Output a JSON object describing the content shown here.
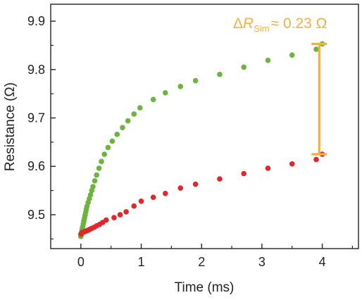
{
  "chart_data": {
    "type": "scatter",
    "xlabel": "Time (ms)",
    "ylabel": "Resistance (Ω)",
    "xlim": [
      -0.5,
      4.6
    ],
    "ylim": [
      9.43,
      9.935
    ],
    "x_ticks": [
      0,
      1,
      2,
      3,
      4
    ],
    "x_tick_labels": [
      "0",
      "1",
      "2",
      "3",
      "4"
    ],
    "y_ticks": [
      9.5,
      9.6,
      9.7,
      9.8,
      9.9
    ],
    "y_tick_labels": [
      "9.5",
      "9.6",
      "9.7",
      "9.8",
      "9.9"
    ],
    "grid": false,
    "series": [
      {
        "color": "#6cb33f",
        "points": [
          [
            0.0,
            9.455
          ],
          [
            0.005,
            9.458
          ],
          [
            0.01,
            9.462
          ],
          [
            0.015,
            9.466
          ],
          [
            0.02,
            9.47
          ],
          [
            0.03,
            9.475
          ],
          [
            0.04,
            9.481
          ],
          [
            0.05,
            9.487
          ],
          [
            0.06,
            9.493
          ],
          [
            0.07,
            9.499
          ],
          [
            0.08,
            9.505
          ],
          [
            0.09,
            9.511
          ],
          [
            0.1,
            9.517
          ],
          [
            0.12,
            9.525
          ],
          [
            0.14,
            9.533
          ],
          [
            0.16,
            9.541
          ],
          [
            0.18,
            9.55
          ],
          [
            0.2,
            9.558
          ],
          [
            0.23,
            9.57
          ],
          [
            0.26,
            9.582
          ],
          [
            0.3,
            9.596
          ],
          [
            0.34,
            9.61
          ],
          [
            0.39,
            9.625
          ],
          [
            0.45,
            9.639
          ],
          [
            0.52,
            9.652
          ],
          [
            0.6,
            9.666
          ],
          [
            0.69,
            9.68
          ],
          [
            0.78,
            9.694
          ],
          [
            0.88,
            9.708
          ],
          [
            0.98,
            9.721
          ],
          [
            1.2,
            9.738
          ],
          [
            1.4,
            9.752
          ],
          [
            1.65,
            9.765
          ],
          [
            1.9,
            9.777
          ],
          [
            2.3,
            9.79
          ],
          [
            2.7,
            9.805
          ],
          [
            3.1,
            9.819
          ],
          [
            3.5,
            9.83
          ],
          [
            3.9,
            9.842
          ],
          [
            4.0,
            9.853
          ]
        ]
      },
      {
        "color": "#e0272c",
        "points": [
          [
            0.0,
            9.46
          ],
          [
            0.01,
            9.462
          ],
          [
            0.02,
            9.463
          ],
          [
            0.04,
            9.464
          ],
          [
            0.06,
            9.465
          ],
          [
            0.08,
            9.466
          ],
          [
            0.1,
            9.467
          ],
          [
            0.12,
            9.468
          ],
          [
            0.15,
            9.47
          ],
          [
            0.18,
            9.472
          ],
          [
            0.22,
            9.474
          ],
          [
            0.26,
            9.477
          ],
          [
            0.31,
            9.48
          ],
          [
            0.36,
            9.484
          ],
          [
            0.42,
            9.489
          ],
          [
            0.55,
            9.494
          ],
          [
            0.65,
            9.5
          ],
          [
            0.75,
            9.506
          ],
          [
            0.88,
            9.518
          ],
          [
            1.0,
            9.528
          ],
          [
            1.2,
            9.536
          ],
          [
            1.4,
            9.544
          ],
          [
            1.65,
            9.555
          ],
          [
            1.9,
            9.563
          ],
          [
            2.3,
            9.574
          ],
          [
            2.7,
            9.585
          ],
          [
            3.1,
            9.596
          ],
          [
            3.5,
            9.605
          ],
          [
            3.9,
            9.614
          ],
          [
            4.0,
            9.625
          ]
        ]
      }
    ],
    "annotation": {
      "delta": "Δ",
      "symbol": "R",
      "subscript": "Sim",
      "rest": "≈ 0.23 Ω",
      "color": "#f5b041",
      "bar_x": 3.95,
      "bar_top": 9.853,
      "bar_bottom": 9.625
    }
  }
}
